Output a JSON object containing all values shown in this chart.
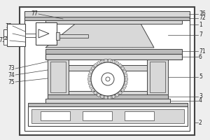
{
  "bg_color": "#eeeeee",
  "line_color": "#444444",
  "gray_fill": "#bbbbbb",
  "light_gray": "#d8d8d8",
  "white": "#ffffff",
  "dark_gray": "#999999",
  "mid_gray": "#cccccc"
}
